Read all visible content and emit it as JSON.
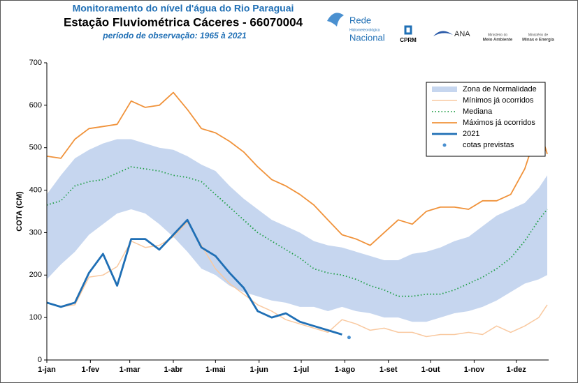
{
  "chart_data": {
    "type": "line",
    "title": "Monitoramento do nível d'água do Rio Paraguai",
    "subtitle": "Estação Fluviométrica Cáceres - 66070004",
    "period": "período de observação: 1965 à 2021",
    "logo_texts": [
      "Rede",
      "Hidrometeorológica",
      "Nacional",
      "CPRM",
      "ANA",
      "Ministério do",
      "Meio Ambiente",
      "Ministério de",
      "Minas e Energia"
    ],
    "ylabel": "COTA (CM)",
    "ylim": [
      0,
      700
    ],
    "yticks": [
      0,
      100,
      200,
      300,
      400,
      500,
      600,
      700
    ],
    "xlim": [
      0,
      357
    ],
    "xticks": [
      {
        "value": 0,
        "label": "1-jan"
      },
      {
        "value": 31,
        "label": "1-fev"
      },
      {
        "value": 59,
        "label": "1-mar"
      },
      {
        "value": 90,
        "label": "1-abr"
      },
      {
        "value": 120,
        "label": "1-mai"
      },
      {
        "value": 151,
        "label": "1-jun"
      },
      {
        "value": 181,
        "label": "1-jul"
      },
      {
        "value": 212,
        "label": "1-ago"
      },
      {
        "value": 243,
        "label": "1-set"
      },
      {
        "value": 273,
        "label": "1-out"
      },
      {
        "value": 304,
        "label": "1-nov"
      },
      {
        "value": 334,
        "label": "1-dez"
      }
    ],
    "legend": "upper right",
    "x": [
      0,
      10,
      20,
      30,
      40,
      50,
      60,
      70,
      80,
      90,
      100,
      110,
      120,
      130,
      140,
      150,
      160,
      170,
      180,
      190,
      200,
      210,
      220,
      230,
      240,
      250,
      260,
      270,
      280,
      290,
      300,
      310,
      320,
      330,
      340,
      350,
      356
    ],
    "series": [
      {
        "name": "Zona de Normalidade",
        "kind": "band",
        "color": "#c6d6ef",
        "values": [
          390,
          435,
          475,
          495,
          510,
          520,
          520,
          510,
          500,
          495,
          480,
          460,
          445,
          410,
          380,
          355,
          330,
          315,
          300,
          280,
          270,
          265,
          255,
          245,
          235,
          235,
          250,
          255,
          265,
          280,
          290,
          315,
          340,
          355,
          370,
          405,
          435
        ],
        "low": [
          190,
          225,
          255,
          295,
          320,
          345,
          355,
          345,
          320,
          290,
          255,
          215,
          200,
          175,
          160,
          150,
          140,
          135,
          125,
          125,
          115,
          125,
          115,
          110,
          100,
          100,
          90,
          90,
          100,
          110,
          115,
          125,
          140,
          160,
          180,
          190,
          200
        ]
      },
      {
        "name": "Mínimos já ocorridos",
        "kind": "line",
        "color": "#f9c9a0",
        "width": 1.5,
        "values": [
          135,
          125,
          130,
          195,
          200,
          220,
          280,
          265,
          270,
          290,
          325,
          270,
          215,
          180,
          155,
          130,
          115,
          95,
          85,
          75,
          65,
          95,
          85,
          70,
          75,
          65,
          65,
          55,
          60,
          60,
          65,
          60,
          80,
          65,
          80,
          100,
          130
        ]
      },
      {
        "name": "Mediana",
        "kind": "dotted",
        "color": "#1f9e45",
        "width": 1.8,
        "values": [
          365,
          375,
          410,
          420,
          425,
          440,
          455,
          450,
          445,
          435,
          430,
          420,
          390,
          360,
          330,
          300,
          280,
          260,
          240,
          215,
          205,
          200,
          190,
          175,
          165,
          150,
          150,
          155,
          155,
          165,
          180,
          195,
          215,
          240,
          280,
          330,
          355
        ]
      },
      {
        "name": "Máximos já ocorridos",
        "kind": "line",
        "color": "#f0923a",
        "width": 1.8,
        "values": [
          480,
          475,
          520,
          545,
          550,
          555,
          610,
          595,
          600,
          630,
          590,
          545,
          535,
          515,
          490,
          455,
          425,
          410,
          390,
          365,
          330,
          295,
          285,
          270,
          300,
          330,
          320,
          350,
          360,
          360,
          355,
          375,
          375,
          390,
          450,
          550,
          485
        ]
      },
      {
        "name": "2021",
        "kind": "line",
        "color": "#1f6fb5",
        "width": 2.8,
        "values": [
          135,
          125,
          135,
          205,
          250,
          175,
          285,
          285,
          260,
          295,
          330,
          265,
          245,
          205,
          170,
          115,
          100,
          110,
          90,
          80,
          70,
          60,
          null,
          null,
          null,
          null,
          null,
          null,
          null,
          null,
          null,
          null,
          null,
          null,
          null,
          null,
          null
        ]
      },
      {
        "name": "cotas previstas",
        "kind": "points",
        "color": "#4a90d0",
        "x": [
          215
        ],
        "values": [
          53
        ]
      }
    ]
  }
}
